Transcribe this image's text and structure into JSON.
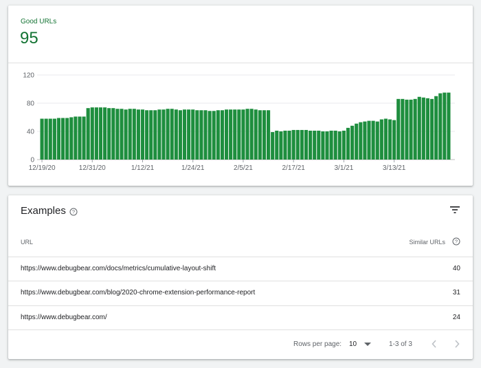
{
  "summary": {
    "metric_label": "Good URLs",
    "metric_value": "95"
  },
  "colors": {
    "bar": "#1e8e3e",
    "accent": "#137333"
  },
  "chart_data": {
    "type": "bar",
    "ylim": [
      0,
      120
    ],
    "yticks": [
      "0",
      "40",
      "80",
      "120"
    ],
    "xtick_labels": [
      "12/19/20",
      "12/31/20",
      "1/12/21",
      "1/24/21",
      "2/5/21",
      "2/17/21",
      "3/1/21",
      "3/13/21"
    ],
    "xtick_indices": [
      0,
      12,
      24,
      36,
      48,
      60,
      72,
      84
    ],
    "values": [
      58,
      58,
      58,
      58,
      59,
      59,
      59,
      60,
      61,
      61,
      61,
      73,
      74,
      74,
      74,
      74,
      73,
      73,
      72,
      72,
      71,
      72,
      72,
      71,
      71,
      70,
      70,
      70,
      71,
      71,
      72,
      72,
      71,
      70,
      71,
      71,
      71,
      70,
      70,
      70,
      69,
      69,
      70,
      70,
      71,
      71,
      71,
      71,
      71,
      72,
      72,
      71,
      70,
      70,
      70,
      39,
      41,
      40,
      41,
      41,
      42,
      42,
      42,
      42,
      41,
      41,
      41,
      40,
      40,
      41,
      41,
      40,
      41,
      45,
      48,
      51,
      53,
      54,
      55,
      55,
      54,
      57,
      58,
      57,
      56,
      86,
      86,
      85,
      85,
      86,
      89,
      88,
      87,
      86,
      90,
      94,
      95,
      95
    ]
  },
  "examples": {
    "title": "Examples",
    "help_icon": "help-circle-icon",
    "filter_icon": "filter-icon",
    "col_url": "URL",
    "col_similar": "Similar URLs",
    "rows": [
      {
        "url": "https://www.debugbear.com/docs/metrics/cumulative-layout-shift",
        "count": "40"
      },
      {
        "url": "https://www.debugbear.com/blog/2020-chrome-extension-performance-report",
        "count": "31"
      },
      {
        "url": "https://www.debugbear.com/",
        "count": "24"
      }
    ],
    "pagination": {
      "rows_label": "Rows per page:",
      "rows_value": "10",
      "range": "1-3 of 3"
    }
  }
}
